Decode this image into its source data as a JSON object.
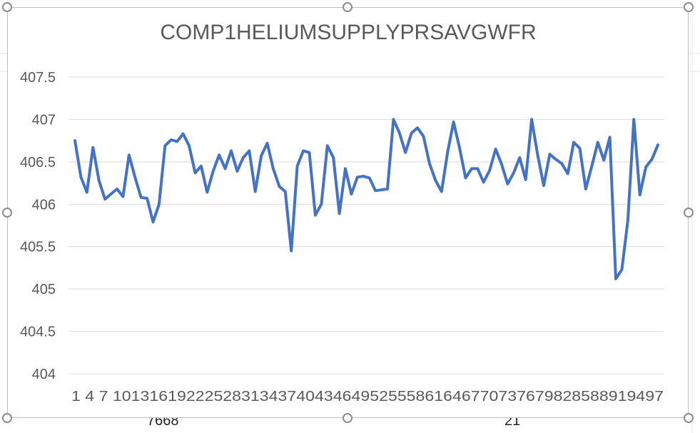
{
  "colors": {
    "line": "#4472c4",
    "grid": "#d9d9d9",
    "text": "#595959",
    "title": "#595959"
  },
  "background_cells": {
    "left_value": "7668",
    "right_value": "21"
  },
  "chart_data": {
    "type": "line",
    "title": "COMP1HELIUMSUPPLYPRSAVGWFR",
    "xlabel": "",
    "ylabel": "",
    "ylim": [
      404,
      407.5
    ],
    "yticks": [
      "404",
      "404.5",
      "405",
      "405.5",
      "406",
      "406.5",
      "407",
      "407.5"
    ],
    "grid": true,
    "x_tick_labels": [
      "1",
      "4",
      "7",
      "10",
      "13",
      "16",
      "19",
      "22",
      "25",
      "28",
      "31",
      "34",
      "37",
      "40",
      "43",
      "46",
      "49",
      "52",
      "55",
      "58",
      "61",
      "64",
      "67",
      "70",
      "73",
      "76",
      "79",
      "82",
      "85",
      "88",
      "91",
      "94",
      "97"
    ],
    "series": [
      {
        "name": "COMP1HELIUMSUPPLYPRSAVGWFR",
        "values": [
          406.75,
          406.32,
          406.14,
          406.67,
          406.28,
          406.06,
          406.12,
          406.18,
          406.09,
          406.58,
          406.32,
          406.08,
          406.07,
          405.79,
          406.0,
          406.69,
          406.76,
          406.74,
          406.83,
          406.69,
          406.37,
          406.45,
          406.14,
          406.39,
          406.58,
          406.42,
          406.63,
          406.39,
          406.55,
          406.63,
          406.15,
          406.57,
          406.72,
          406.42,
          406.21,
          406.15,
          405.45,
          406.45,
          406.63,
          406.61,
          405.87,
          406.0,
          406.69,
          406.55,
          405.89,
          406.42,
          406.12,
          406.32,
          406.33,
          406.31,
          406.16,
          406.17,
          406.18,
          407.0,
          406.84,
          406.61,
          406.84,
          406.9,
          406.8,
          406.48,
          406.28,
          406.15,
          406.61,
          406.97,
          406.66,
          406.31,
          406.42,
          406.42,
          406.26,
          406.4,
          406.65,
          406.47,
          406.24,
          406.37,
          406.55,
          406.29,
          407.0,
          406.58,
          406.22,
          406.59,
          406.53,
          406.48,
          406.36,
          406.73,
          406.66,
          406.18,
          406.45,
          406.73,
          406.52,
          406.79,
          405.12,
          405.23,
          405.81,
          407.0,
          406.11,
          406.44,
          406.53,
          406.7
        ]
      }
    ]
  }
}
